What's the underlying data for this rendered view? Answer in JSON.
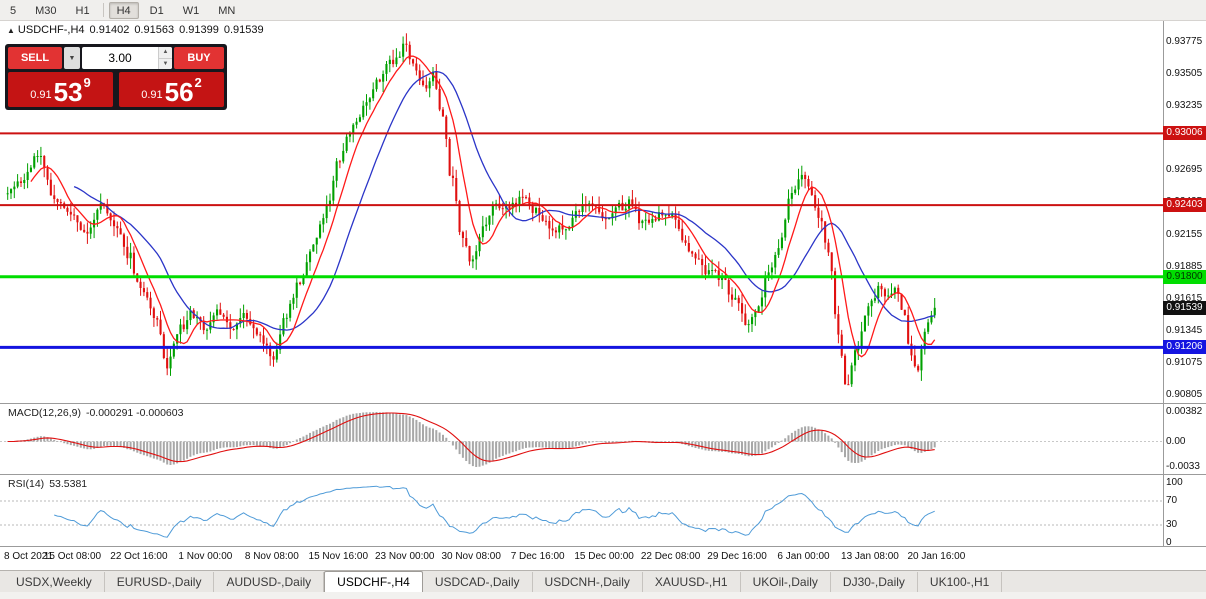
{
  "toolbar": {
    "timeframes": [
      {
        "label": "5"
      },
      {
        "label": "M30"
      },
      {
        "label": "H1",
        "sep_after": true
      },
      {
        "label": "H4",
        "active": true
      },
      {
        "label": "D1"
      },
      {
        "label": "W1"
      },
      {
        "label": "MN"
      }
    ]
  },
  "trade_panel": {
    "sell_label": "SELL",
    "buy_label": "BUY",
    "volume": "3.00",
    "sell_price": {
      "prefix": "0.91",
      "big": "53",
      "sup": "9"
    },
    "buy_price": {
      "prefix": "0.91",
      "big": "56",
      "sup": "2"
    }
  },
  "bottom_tabs": {
    "items": [
      "USDX,Weekly",
      "EURUSD-,Daily",
      "AUDUSD-,Daily",
      "USDCHF-,H4",
      "USDCAD-,Daily",
      "USDCNH-,Daily",
      "XAUUSD-,H1",
      "UKOil-,Daily",
      "DJ30-,Daily",
      "UK100-,H1"
    ],
    "active_index": 3
  },
  "chart_data": {
    "type": "candlestick",
    "symbol_tf": "USDCHF-,H4",
    "open": "0.91402",
    "high": "0.91563",
    "low": "0.91399",
    "close": "0.91539",
    "last_close": 0.91539,
    "price_range": [
      0.90738,
      0.93952
    ],
    "bars": 280,
    "data_width_frac": 0.8,
    "seed": 11,
    "noise": 0.00055,
    "wick": 0.0009,
    "up_color": "#00a000",
    "down_color": "#e01010",
    "ma_fast": {
      "period": 8,
      "color": "#ff1a1a"
    },
    "ma_slow": {
      "period": 21,
      "color": "#2b35c8"
    },
    "anchors": [
      [
        0.0,
        0.925
      ],
      [
        0.015,
        0.9262
      ],
      [
        0.035,
        0.9282
      ],
      [
        0.05,
        0.9245
      ],
      [
        0.071,
        0.923
      ],
      [
        0.085,
        0.9215
      ],
      [
        0.1,
        0.924
      ],
      [
        0.115,
        0.9225
      ],
      [
        0.13,
        0.92
      ],
      [
        0.143,
        0.9172
      ],
      [
        0.158,
        0.915
      ],
      [
        0.172,
        0.9106
      ],
      [
        0.185,
        0.9135
      ],
      [
        0.2,
        0.9148
      ],
      [
        0.214,
        0.9138
      ],
      [
        0.228,
        0.9152
      ],
      [
        0.242,
        0.9135
      ],
      [
        0.255,
        0.9148
      ],
      [
        0.27,
        0.9132
      ],
      [
        0.286,
        0.9112
      ],
      [
        0.3,
        0.915
      ],
      [
        0.315,
        0.9175
      ],
      [
        0.33,
        0.921
      ],
      [
        0.345,
        0.924
      ],
      [
        0.357,
        0.9278
      ],
      [
        0.37,
        0.9302
      ],
      [
        0.385,
        0.9325
      ],
      [
        0.4,
        0.9348
      ],
      [
        0.415,
        0.9362
      ],
      [
        0.429,
        0.9375
      ],
      [
        0.44,
        0.9352
      ],
      [
        0.45,
        0.9338
      ],
      [
        0.458,
        0.9352
      ],
      [
        0.468,
        0.932
      ],
      [
        0.478,
        0.9268
      ],
      [
        0.49,
        0.9215
      ],
      [
        0.5,
        0.919
      ],
      [
        0.512,
        0.9222
      ],
      [
        0.525,
        0.9242
      ],
      [
        0.54,
        0.9238
      ],
      [
        0.555,
        0.9248
      ],
      [
        0.571,
        0.9235
      ],
      [
        0.585,
        0.9222
      ],
      [
        0.6,
        0.9218
      ],
      [
        0.615,
        0.9235
      ],
      [
        0.63,
        0.9242
      ],
      [
        0.643,
        0.9228
      ],
      [
        0.658,
        0.9238
      ],
      [
        0.672,
        0.924
      ],
      [
        0.686,
        0.9225
      ],
      [
        0.7,
        0.9232
      ],
      [
        0.714,
        0.9235
      ],
      [
        0.728,
        0.9212
      ],
      [
        0.742,
        0.9195
      ],
      [
        0.756,
        0.9185
      ],
      [
        0.77,
        0.9178
      ],
      [
        0.786,
        0.916
      ],
      [
        0.798,
        0.9135
      ],
      [
        0.808,
        0.9152
      ],
      [
        0.82,
        0.918
      ],
      [
        0.832,
        0.9205
      ],
      [
        0.845,
        0.9248
      ],
      [
        0.857,
        0.9268
      ],
      [
        0.866,
        0.9252
      ],
      [
        0.876,
        0.9228
      ],
      [
        0.886,
        0.9198
      ],
      [
        0.896,
        0.913
      ],
      [
        0.905,
        0.909
      ],
      [
        0.915,
        0.9118
      ],
      [
        0.929,
        0.9155
      ],
      [
        0.94,
        0.9168
      ],
      [
        0.95,
        0.916
      ],
      [
        0.958,
        0.9172
      ],
      [
        0.966,
        0.915
      ],
      [
        0.975,
        0.9112
      ],
      [
        0.982,
        0.9098
      ],
      [
        0.99,
        0.9138
      ],
      [
        1.0,
        0.9154
      ]
    ],
    "levels": [
      {
        "price": 0.93006,
        "label": "0.93006",
        "color": "#cc1111",
        "thickness": 2,
        "text": "#ffffff"
      },
      {
        "price": 0.92403,
        "label": "0.92403",
        "color": "#cc1111",
        "thickness": 2,
        "text": "#ffffff"
      },
      {
        "price": 0.918,
        "label": "0.91800",
        "color": "#00dd00",
        "thickness": 3,
        "text": "#003300"
      },
      {
        "price": 0.91206,
        "label": "0.91206",
        "color": "#1414e0",
        "thickness": 3,
        "text": "#ffffff"
      }
    ],
    "current_price": {
      "value": 0.91539,
      "label": "0.91539",
      "badge_bg": "#111111",
      "text": "#ffffff"
    },
    "y_ticks": [
      "0.93775",
      "0.93505",
      "0.93235",
      "0.92965",
      "0.92695",
      "0.92425",
      "0.92155",
      "0.91885",
      "0.91615",
      "0.91345",
      "0.91075",
      "0.90805"
    ],
    "x_labels": [
      "8 Oct 2021",
      "15 Oct 08:00",
      "22 Oct 16:00",
      "1 Nov 00:00",
      "8 Nov 08:00",
      "15 Nov 16:00",
      "23 Nov 00:00",
      "30 Nov 08:00",
      "7 Dec 16:00",
      "15 Dec 00:00",
      "22 Dec 08:00",
      "29 Dec 16:00",
      "6 Jan 00:00",
      "13 Jan 08:00",
      "20 Jan 16:00"
    ],
    "macd": {
      "label_name": "MACD(12,26,9)",
      "label_values": "-0.000291 -0.000603",
      "ticks": [
        {
          "v": 0.00382,
          "label": "0.00382"
        },
        {
          "v": 0,
          "label": "0.00"
        },
        {
          "v": -0.0033,
          "label": "-0.0033"
        }
      ],
      "hist_color": "#a8a8a8",
      "signal_color": "#e01010"
    },
    "rsi": {
      "label_name": "RSI(14)",
      "label_value": "53.5381",
      "ticks": [
        {
          "v": 100,
          "label": "100"
        },
        {
          "v": 70,
          "label": "70"
        },
        {
          "v": 30,
          "label": "30"
        },
        {
          "v": 0,
          "label": "0"
        }
      ],
      "levels": [
        70,
        30
      ],
      "color": "#4f9bd8"
    }
  }
}
